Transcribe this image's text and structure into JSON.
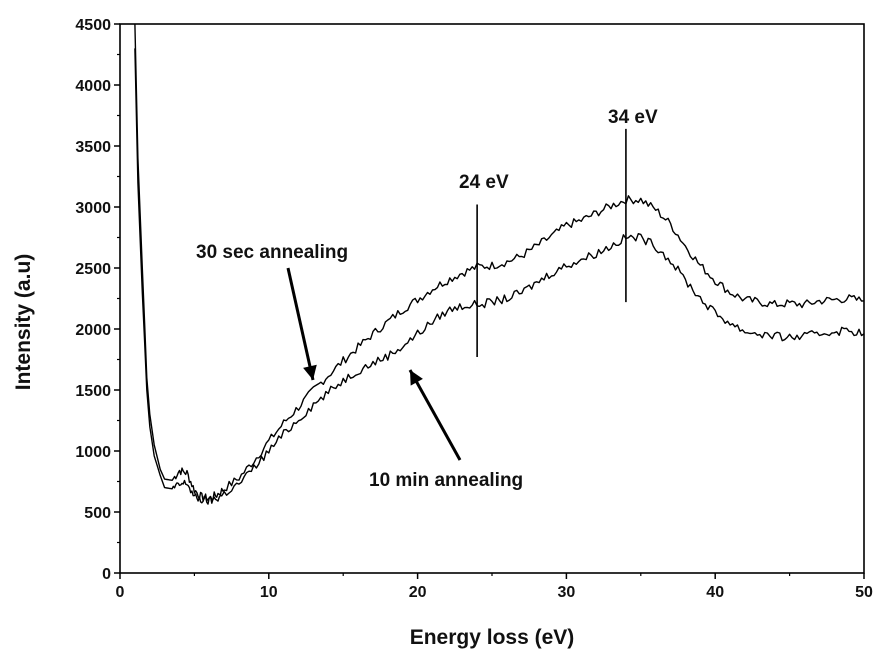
{
  "chart_data": {
    "type": "line",
    "xlabel": "Energy loss (eV)",
    "ylabel": "Intensity (a.u)",
    "xlim": [
      0,
      50
    ],
    "ylim": [
      0,
      4500
    ],
    "xticks": [
      "0",
      "10",
      "20",
      "30",
      "40",
      "50"
    ],
    "yticks": [
      "0",
      "500",
      "1000",
      "1500",
      "2000",
      "2500",
      "3000",
      "3500",
      "4000",
      "4500"
    ],
    "grid": false,
    "series": [
      {
        "name": "30 sec annealing",
        "color": "#000000",
        "x": [
          1.0,
          1.2,
          1.5,
          1.8,
          2.0,
          2.3,
          2.7,
          3.0,
          3.5,
          4.0,
          4.5,
          5.0,
          5.5,
          6.0,
          6.5,
          7.0,
          8.0,
          9.0,
          10.0,
          11.0,
          12.0,
          13.0,
          14.0,
          15.0,
          16.0,
          17.0,
          18.0,
          19.0,
          20.0,
          21.0,
          22.0,
          23.0,
          24.0,
          25.0,
          26.0,
          27.0,
          28.0,
          29.0,
          30.0,
          31.0,
          32.0,
          33.0,
          34.0,
          35.0,
          36.0,
          37.0,
          38.0,
          39.0,
          40.0,
          41.0,
          42.0,
          43.0,
          44.0,
          45.0,
          46.0,
          47.0,
          48.0,
          49.0,
          50.0
        ],
        "y": [
          4500,
          3400,
          2500,
          1600,
          1300,
          1050,
          850,
          770,
          760,
          840,
          820,
          680,
          620,
          610,
          640,
          690,
          780,
          920,
          1080,
          1230,
          1360,
          1500,
          1620,
          1740,
          1850,
          1960,
          2060,
          2160,
          2240,
          2330,
          2400,
          2460,
          2510,
          2520,
          2550,
          2600,
          2680,
          2760,
          2850,
          2890,
          2950,
          3010,
          3060,
          3060,
          2980,
          2860,
          2680,
          2520,
          2400,
          2300,
          2240,
          2220,
          2200,
          2210,
          2200,
          2230,
          2240,
          2250,
          2230
        ]
      },
      {
        "name": "10 min annealing",
        "color": "#000000",
        "x": [
          1.0,
          1.2,
          1.5,
          1.8,
          2.0,
          2.3,
          2.7,
          3.0,
          3.5,
          4.0,
          4.5,
          5.0,
          5.5,
          6.0,
          6.5,
          7.0,
          8.0,
          9.0,
          10.0,
          11.0,
          12.0,
          13.0,
          14.0,
          15.0,
          16.0,
          17.0,
          18.0,
          19.0,
          20.0,
          21.0,
          22.0,
          23.0,
          24.0,
          25.0,
          26.0,
          27.0,
          28.0,
          29.0,
          30.0,
          31.0,
          32.0,
          33.0,
          34.0,
          35.0,
          36.0,
          37.0,
          38.0,
          39.0,
          40.0,
          41.0,
          42.0,
          43.0,
          44.0,
          45.0,
          46.0,
          47.0,
          48.0,
          49.0,
          50.0
        ],
        "y": [
          4300,
          3200,
          2300,
          1500,
          1200,
          960,
          800,
          700,
          690,
          720,
          740,
          620,
          600,
          590,
          610,
          650,
          730,
          860,
          1000,
          1140,
          1260,
          1380,
          1480,
          1580,
          1660,
          1720,
          1780,
          1860,
          1960,
          2060,
          2150,
          2190,
          2200,
          2220,
          2250,
          2300,
          2380,
          2460,
          2520,
          2570,
          2620,
          2680,
          2750,
          2750,
          2680,
          2560,
          2400,
          2250,
          2130,
          2050,
          1980,
          1960,
          1940,
          1930,
          1940,
          1960,
          1980,
          1990,
          1960
        ]
      }
    ],
    "annotations": {
      "label_30sec": "30 sec annealing",
      "label_10min": "10 min annealing",
      "marker_24": {
        "text": "24 eV",
        "x": 24,
        "y_from": 1770,
        "y_to": 3020
      },
      "marker_34": {
        "text": "34 eV",
        "x": 34,
        "y_from": 2220,
        "y_to": 3640
      }
    }
  }
}
